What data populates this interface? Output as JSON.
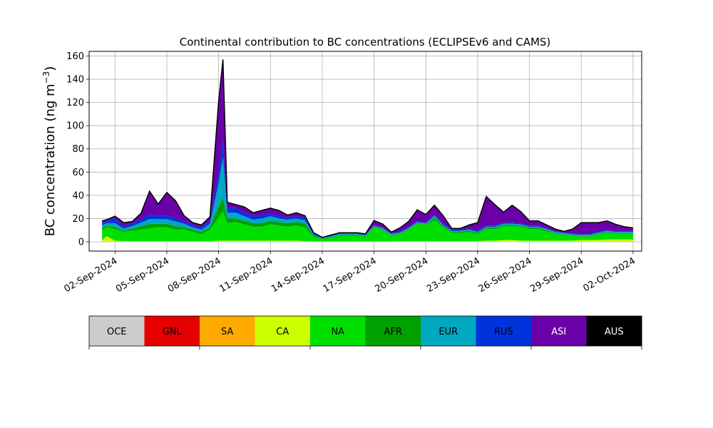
{
  "chart_data": {
    "type": "area",
    "title": "Continental contribution to BC concentrations (ECLIPSEv6 and CAMS)",
    "ylabel": "BC concentration (ng m",
    "ylabel_superscript": "−3",
    "ylabel_suffix": ")",
    "ylim": [
      -8,
      164
    ],
    "yticks": [
      0,
      20,
      40,
      60,
      80,
      100,
      120,
      140,
      160
    ],
    "xlim": [
      "2024-08-31T12:00",
      "2024-10-02T12:00"
    ],
    "xticks": [
      "02-Sep-2024",
      "05-Sep-2024",
      "08-Sep-2024",
      "11-Sep-2024",
      "14-Sep-2024",
      "17-Sep-2024",
      "20-Sep-2024",
      "23-Sep-2024",
      "26-Sep-2024",
      "29-Sep-2024",
      "02-Oct-2024"
    ],
    "xtick_dates": [
      "2024-09-02",
      "2024-09-05",
      "2024-09-08",
      "2024-09-11",
      "2024-09-14",
      "2024-09-17",
      "2024-09-20",
      "2024-09-23",
      "2024-09-26",
      "2024-09-29",
      "2024-10-02"
    ],
    "grid": true,
    "stacked": true,
    "x": [
      "2024-09-01T06:00",
      "2024-09-01T12:00",
      "2024-09-02T00:00",
      "2024-09-02T12:00",
      "2024-09-03T00:00",
      "2024-09-03T12:00",
      "2024-09-04T00:00",
      "2024-09-04T12:00",
      "2024-09-05T00:00",
      "2024-09-05T12:00",
      "2024-09-06T00:00",
      "2024-09-06T12:00",
      "2024-09-07T00:00",
      "2024-09-07T12:00",
      "2024-09-08T00:00",
      "2024-09-08T06:00",
      "2024-09-08T12:00",
      "2024-09-09T00:00",
      "2024-09-09T12:00",
      "2024-09-10T00:00",
      "2024-09-10T12:00",
      "2024-09-11T00:00",
      "2024-09-11T12:00",
      "2024-09-12T00:00",
      "2024-09-12T12:00",
      "2024-09-13T00:00",
      "2024-09-13T12:00",
      "2024-09-14T00:00",
      "2024-09-14T12:00",
      "2024-09-15T00:00",
      "2024-09-15T12:00",
      "2024-09-16T00:00",
      "2024-09-16T12:00",
      "2024-09-17T00:00",
      "2024-09-17T12:00",
      "2024-09-18T00:00",
      "2024-09-18T12:00",
      "2024-09-19T00:00",
      "2024-09-19T12:00",
      "2024-09-20T00:00",
      "2024-09-20T12:00",
      "2024-09-21T00:00",
      "2024-09-21T12:00",
      "2024-09-22T00:00",
      "2024-09-22T12:00",
      "2024-09-23T00:00",
      "2024-09-23T12:00",
      "2024-09-24T00:00",
      "2024-09-24T12:00",
      "2024-09-25T00:00",
      "2024-09-25T12:00",
      "2024-09-26T00:00",
      "2024-09-26T12:00",
      "2024-09-27T00:00",
      "2024-09-27T12:00",
      "2024-09-28T00:00",
      "2024-09-28T12:00",
      "2024-09-29T00:00",
      "2024-09-29T12:00",
      "2024-09-30T00:00",
      "2024-09-30T12:00",
      "2024-10-01T00:00",
      "2024-10-01T12:00",
      "2024-10-02T00:00"
    ],
    "series": [
      {
        "name": "OCE",
        "color": "#cccccc",
        "values": [
          0,
          0,
          0,
          0,
          0,
          0,
          0,
          0,
          0,
          0,
          0,
          0,
          0,
          0,
          0,
          0,
          0,
          0,
          0,
          0,
          0,
          0,
          0,
          0,
          0,
          0,
          0,
          0,
          0,
          0,
          0,
          0,
          0,
          0,
          0,
          0,
          0,
          0,
          0,
          0,
          0,
          0,
          0,
          0,
          0,
          0,
          0,
          0,
          0,
          0,
          0,
          0,
          0,
          0,
          0,
          0,
          0,
          0,
          0,
          0,
          0,
          0,
          0,
          0
        ]
      },
      {
        "name": "GNL",
        "color": "#e60000",
        "values": [
          0,
          0,
          0,
          0,
          0,
          0,
          0,
          0,
          0,
          0,
          0,
          0,
          0,
          0,
          0,
          0,
          0,
          0,
          0,
          0,
          0,
          0,
          0,
          0,
          0,
          0,
          0,
          0,
          0,
          0,
          0,
          0,
          0,
          0,
          0,
          0,
          0,
          0,
          0,
          0,
          0,
          0,
          0,
          0,
          0,
          0,
          0,
          0,
          0,
          0,
          0,
          0,
          0,
          0,
          0,
          0,
          0,
          0,
          0,
          0,
          0,
          0,
          0,
          0
        ]
      },
      {
        "name": "SA",
        "color": "#ffaa00",
        "values": [
          0,
          0,
          0,
          0,
          0,
          0,
          0,
          0,
          0,
          0,
          0,
          0,
          0,
          0,
          0,
          0,
          0,
          0,
          0,
          0,
          0,
          0,
          0,
          0,
          0,
          0,
          0,
          0,
          0,
          0,
          0,
          0,
          0,
          0,
          0,
          0,
          0,
          0,
          0,
          0,
          0,
          0,
          0,
          0,
          0,
          0,
          0,
          0,
          0,
          0,
          0,
          0,
          0,
          0,
          0,
          0,
          0,
          0,
          0,
          0,
          0,
          0,
          0,
          0
        ]
      },
      {
        "name": "CA",
        "color": "#ccff00",
        "values": [
          1,
          5,
          1,
          0.5,
          0.5,
          0.5,
          0.5,
          0.5,
          0.5,
          0.5,
          0.5,
          0.5,
          0.5,
          0.5,
          1,
          1,
          1,
          1,
          1,
          1,
          1,
          1,
          1,
          1,
          1,
          0.5,
          0.3,
          0.3,
          0.3,
          0.3,
          0.3,
          0.3,
          0.3,
          0.3,
          0.3,
          0.3,
          0.5,
          0.5,
          0.5,
          0.5,
          0.5,
          0.5,
          0.5,
          0.5,
          0.5,
          0.5,
          1,
          1,
          1.5,
          1.5,
          1,
          1,
          1,
          1,
          1,
          1,
          1,
          1.5,
          1.5,
          1.5,
          2,
          2,
          2,
          2
        ]
      },
      {
        "name": "NA",
        "color": "#00e000",
        "values": [
          9,
          8,
          10,
          8,
          9,
          10,
          11,
          12,
          12,
          10,
          10,
          8,
          6,
          10,
          20,
          25,
          15,
          16,
          14,
          12,
          12,
          14,
          13,
          12,
          13,
          12,
          4,
          2,
          3,
          5,
          5,
          5,
          4,
          12,
          10,
          5,
          6,
          10,
          15,
          14,
          18,
          12,
          7,
          7,
          8,
          6,
          10,
          10,
          12,
          12,
          12,
          10,
          10,
          8,
          6,
          5,
          4,
          3,
          3,
          5,
          6,
          5,
          5,
          5
        ]
      },
      {
        "name": "AFR",
        "color": "#00a000",
        "values": [
          2,
          1,
          2,
          1,
          2,
          3,
          4,
          3,
          3,
          3,
          2,
          2,
          2,
          2,
          10,
          12,
          4,
          3,
          3,
          3,
          3,
          3,
          3,
          3,
          3,
          3,
          1,
          0.5,
          0.5,
          0.5,
          0.5,
          0.5,
          0.5,
          0.5,
          0.5,
          0.5,
          0.5,
          0.5,
          0.5,
          0.5,
          2,
          1,
          1,
          1,
          1,
          1,
          1,
          1,
          1,
          1,
          1,
          1,
          1,
          1,
          0.5,
          0.5,
          0.5,
          0.5,
          0.5,
          0.5,
          0.5,
          0.5,
          0.5,
          0.5
        ]
      },
      {
        "name": "EUR",
        "color": "#00a8c0",
        "values": [
          2,
          2,
          3,
          2,
          2,
          3,
          4,
          4,
          4,
          4,
          3,
          2,
          2,
          3,
          20,
          35,
          5,
          5,
          4,
          3,
          4,
          4,
          3,
          3,
          3,
          3,
          1,
          0.5,
          1,
          1,
          1,
          1,
          1,
          1,
          1,
          1,
          1,
          1,
          1,
          1,
          2,
          1,
          1,
          1,
          1,
          1,
          1,
          1,
          1,
          1,
          1,
          1,
          1,
          1,
          1,
          1,
          1,
          1,
          1,
          1,
          1,
          1,
          1,
          1
        ]
      },
      {
        "name": "RUS",
        "color": "#0033dd",
        "values": [
          2,
          2,
          4,
          2,
          2,
          3,
          4,
          3,
          3,
          3,
          2,
          2,
          2,
          2,
          10,
          14,
          4,
          4,
          3,
          3,
          3,
          2,
          2,
          2,
          2,
          2,
          1,
          0.5,
          0.5,
          0.5,
          0.5,
          0.5,
          0.5,
          0.5,
          0.5,
          0.5,
          1,
          0.5,
          0.5,
          0.5,
          1,
          1,
          1,
          1,
          1,
          1,
          1,
          1,
          1,
          1,
          1,
          1,
          1,
          0.5,
          0.5,
          0.5,
          0.5,
          0.5,
          0.5,
          0.5,
          0.5,
          0.5,
          0.5,
          0.5
        ]
      },
      {
        "name": "ASI",
        "color": "#6a00a8",
        "values": [
          2,
          1,
          2,
          3,
          2,
          5,
          20,
          10,
          20,
          15,
          5,
          2,
          2,
          4,
          60,
          70,
          5,
          3,
          5,
          3,
          4,
          5,
          5,
          2,
          3,
          2,
          0.5,
          0,
          0.5,
          0.5,
          0.5,
          0.5,
          0.5,
          4,
          3,
          1,
          3,
          5,
          10,
          7,
          8,
          7,
          1,
          1,
          3,
          7,
          25,
          18,
          9,
          15,
          10,
          4,
          4,
          3,
          2,
          1,
          4,
          10,
          10,
          8,
          8,
          6,
          4,
          3
        ]
      },
      {
        "name": "AUS",
        "color": "#000000",
        "values": [
          0,
          0,
          0,
          0,
          0,
          0,
          0,
          0,
          0,
          0,
          0,
          0,
          0,
          0,
          0,
          0,
          0,
          0,
          0,
          0,
          0,
          0,
          0,
          0,
          0,
          0,
          0,
          0,
          0,
          0,
          0,
          0,
          0,
          0,
          0,
          0,
          0,
          0,
          0,
          0,
          0,
          0,
          0,
          0,
          0,
          0,
          0,
          0,
          0,
          0,
          0,
          0,
          0,
          0,
          0,
          0,
          0,
          0,
          0,
          0,
          0,
          0,
          0,
          0
        ]
      }
    ],
    "legend_position": "below"
  }
}
